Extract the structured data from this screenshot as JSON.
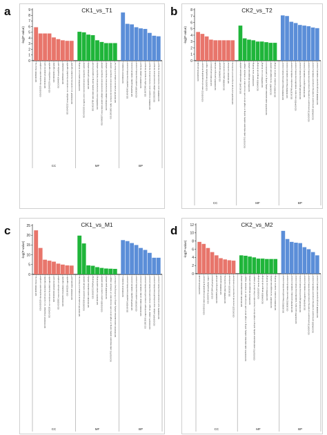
{
  "colors": {
    "CC": "#e8756b",
    "MF": "#1fb53a",
    "BP": "#5b8ed8",
    "axis": "#111111",
    "term_text": "#333333"
  },
  "panels": [
    {
      "letter": "a",
      "title": "CK1_vs_T1",
      "ylabel": "-log(P-value)"
    },
    {
      "letter": "b",
      "title": "CK2_vs_T2",
      "ylabel": "-log(P-value)"
    },
    {
      "letter": "c",
      "title": "CK1_vs_M1",
      "ylabel": "-log(P-value)"
    },
    {
      "letter": "d",
      "title": "CK2_vs_M2",
      "ylabel": "-log(P-value)"
    }
  ],
  "chart_data": [
    {
      "type": "bar",
      "title": "CK1_vs_T1",
      "ylabel": "-log(P-value)",
      "ylim": [
        0,
        9
      ],
      "yticks": [
        "0",
        "1",
        "2",
        "3",
        "4",
        "5",
        "6",
        "7",
        "8",
        "9"
      ],
      "groups": [
        "CC",
        "MF",
        "BP"
      ],
      "series": [
        {
          "name": "CC",
          "values": [
            5.9,
            4.8,
            4.8,
            4.8,
            4.1,
            3.8,
            3.6,
            3.5,
            3.5
          ],
          "terms": [
            "GO:0005840 ribosome",
            "GO:0030529 ribonucleoprotein complex",
            "GO:0044444 cytoplasmic part",
            "GO:0043229 intracellular organelle",
            "GO:0043226 organelle",
            "GO:0044424 intracellular part",
            "GO:0005622 intracellular",
            "GO:0043232 intracellular non-membrane-bounded organelle",
            "GO:0043228 non-membrane-bounded organelle"
          ]
        },
        {
          "name": "MF",
          "values": [
            5.1,
            5.0,
            4.6,
            4.5,
            3.6,
            3.3,
            3.1,
            3.1,
            3.1
          ],
          "terms": [
            "GO:0005509 calcium ion binding",
            "GO:0015103 inorganic anion transmembrane transporter activity",
            "GO:0004553 hydrolase activity",
            "GO:0016798 hydrolase activity, acting on glycosyl bonds",
            "GO:0008509 anion transmembrane transporter activity",
            "GO:0008271 secondary active sulfate transmembrane transporter activity",
            "GO:0015116 sulfate transmembrane transporter activity",
            "GO:1901682 sulfur compound transmembrane transporter activity",
            "GO:0003735 structural constituent of ribosome"
          ]
        },
        {
          "name": "BP",
          "values": [
            8.5,
            6.5,
            6.4,
            5.9,
            5.7,
            5.6,
            4.9,
            4.4,
            4.3
          ],
          "terms": [
            "GO:0006412 translation",
            "GO:0043043 peptide biosynthetic process",
            "GO:0006518 peptide metabolic process",
            "GO:0043604 amide biosynthetic process",
            "GO:0008272 sulfate transport",
            "GO:0072348 sulfur compound transport",
            "GO:0098661 inorganic anion transmembrane transport",
            "GO:1902358 sulfate transmembrane transport",
            "GO:0098656 anion transmembrane transport"
          ]
        }
      ]
    },
    {
      "type": "bar",
      "title": "CK2_vs_T2",
      "ylabel": "-log(P-value)",
      "ylim": [
        0,
        8
      ],
      "yticks": [
        "0",
        "1",
        "2",
        "3",
        "4",
        "5",
        "6",
        "7",
        "8"
      ],
      "groups": [
        "CC",
        "MF",
        "BP"
      ],
      "series": [
        {
          "name": "CC",
          "values": [
            4.5,
            4.2,
            3.8,
            3.3,
            3.2,
            3.2,
            3.2,
            3.2,
            3.2
          ],
          "terms": [
            "GO:0005618 cell wall",
            "GO:0030312 external encapsulating structure",
            "GO:0005576 extracellular region",
            "GO:0071944 cell periphery",
            "GO:0009505 plant-type cell wall",
            "GO:0048046 apoplast",
            "GO:0005886 plasma membrane",
            "GO:0016020 membrane",
            "GO:0031225 anchored component of membrane"
          ]
        },
        {
          "name": "MF",
          "values": [
            5.5,
            3.5,
            3.3,
            3.2,
            3.0,
            3.0,
            2.9,
            2.8,
            2.8
          ],
          "terms": [
            "GO:0016491 oxidoreductase activity",
            "GO:0016701 oxidoreductase activity, acting on single donors with incorporation of molecular oxygen",
            "GO:0051213 dioxygenase activity",
            "GO:0020037 heme binding",
            "GO:0046906 tetrapyrrole binding",
            "GO:0005506 iron ion binding",
            "GO:0016705 oxidoreductase activity, acting on paired donors",
            "GO:0004497 monooxygenase activity",
            "GO:0046914 transition metal ion binding"
          ]
        },
        {
          "name": "BP",
          "values": [
            7.1,
            7.0,
            6.1,
            5.9,
            5.6,
            5.5,
            5.4,
            5.2,
            5.1
          ],
          "terms": [
            "GO:0009813 flavonoid biosynthetic process",
            "GO:0009812 flavonoid metabolic process",
            "GO:0019748 secondary metabolic process",
            "GO:0044550 secondary metabolite biosynthetic process",
            "GO:0046148 pigment biosynthetic process",
            "GO:0042440 pigment metabolic process",
            "GO:0009718 anthocyanin-containing compound biosynthetic process",
            "GO:0046283 anthocyanin-containing compound metabolic process",
            "GO:0009698 phenylpropanoid metabolic process"
          ]
        }
      ]
    },
    {
      "type": "bar",
      "title": "CK1_vs_M1",
      "ylabel": "-log(P-value)",
      "ylim": [
        0,
        25
      ],
      "yticks": [
        "0",
        "5",
        "10",
        "15",
        "20",
        "25"
      ],
      "groups": [
        "CC",
        "MF",
        "BP"
      ],
      "series": [
        {
          "name": "CC",
          "values": [
            22.5,
            13.5,
            7.5,
            7.0,
            6.5,
            5.5,
            5.0,
            4.6,
            4.5
          ],
          "terms": [
            "GO:0005840 ribosome",
            "GO:0030529 ribonucleoprotein complex",
            "GO:0043232 intracellular non-membrane-bounded organelle",
            "GO:0043228 non-membrane-bounded organelle",
            "GO:0044444 cytoplasmic part",
            "GO:0032991 macromolecular complex",
            "GO:0043229 intracellular organelle",
            "GO:0043226 organelle",
            "GO:0044422 organelle part"
          ]
        },
        {
          "name": "MF",
          "values": [
            19.8,
            15.8,
            4.6,
            4.4,
            3.7,
            3.3,
            3.0,
            2.9,
            2.8
          ],
          "terms": [
            "GO:0003735 structural constituent of ribosome",
            "GO:0005198 structural molecule activity",
            "GO:0016491 oxidoreductase activity",
            "GO:0003723 RNA binding",
            "GO:0003676 nucleic acid binding",
            "GO:0016830 carbon-carbon lyase activity",
            "GO:0016829 lyase activity",
            "GO:0016701 oxidoreductase activity, acting on single donors with incorporation of molecular oxygen",
            "GO:0016616 oxidoreductase activity, acting on CH-OH group of donors"
          ]
        },
        {
          "name": "BP",
          "values": [
            17.5,
            17.0,
            16.0,
            15.0,
            13.5,
            12.5,
            11.0,
            8.5,
            8.5
          ],
          "terms": [
            "GO:0006412 translation",
            "GO:0043043 peptide biosynthetic process",
            "GO:0006518 peptide metabolic process",
            "GO:0043604 amide biosynthetic process",
            "GO:0043603 cellular amide metabolic process",
            "GO:1901566 organonitrogen compound biosynthetic process",
            "GO:0044271 cellular nitrogen compound biosynthetic process",
            "GO:0034645 cellular macromolecule biosynthetic process",
            "GO:0009059 macromolecule biosynthetic process"
          ]
        }
      ]
    },
    {
      "type": "bar",
      "title": "CK2_vs_M2",
      "ylabel": "-log(P-value)",
      "ylim": [
        0,
        12
      ],
      "yticks": [
        "0",
        "2",
        "4",
        "6",
        "8",
        "10",
        "12"
      ],
      "groups": [
        "CC",
        "MF",
        "BP"
      ],
      "series": [
        {
          "name": "CC",
          "values": [
            7.8,
            7.3,
            6.3,
            5.3,
            4.5,
            3.8,
            3.5,
            3.3,
            3.2
          ],
          "terms": [
            "GO:0005618 cell wall",
            "GO:0030312 external encapsulating structure",
            "GO:0005576 extracellular region",
            "GO:0071944 cell periphery",
            "GO:0009505 plant-type cell wall",
            "GO:0048046 apoplast",
            "GO:0005886 plasma membrane",
            "GO:0016020 membrane",
            "GO:0031225 anchored component of membrane"
          ]
        },
        {
          "name": "MF",
          "values": [
            4.5,
            4.4,
            4.2,
            4.0,
            3.7,
            3.7,
            3.6,
            3.6,
            3.6
          ],
          "terms": [
            "GO:0016491 oxidoreductase activity",
            "GO:0016701 oxidoreductase activity, acting on single donors with incorporation of molecular oxygen",
            "GO:0051213 dioxygenase activity",
            "GO:0016702 oxidoreductase activity, acting on single donors, incorporation of two atoms of oxygen",
            "GO:0020037 heme binding",
            "GO:0046906 tetrapyrrole binding",
            "GO:0005506 iron ion binding",
            "GO:0004497 monooxygenase activity",
            "GO:0046914 transition metal ion binding"
          ]
        },
        {
          "name": "BP",
          "values": [
            10.5,
            8.5,
            7.8,
            7.6,
            7.5,
            6.5,
            6.0,
            5.3,
            4.5
          ],
          "terms": [
            "GO:0009813 flavonoid biosynthetic process",
            "GO:0009812 flavonoid metabolic process",
            "GO:0019748 secondary metabolic process",
            "GO:0044550 secondary metabolite biosynthetic process",
            "GO:0046148 pigment biosynthetic process",
            "GO:0042440 pigment metabolic process",
            "GO:0009718 anthocyanin-containing compound biosynthetic process",
            "GO:0046283 anthocyanin-containing compound metabolic process",
            "GO:0009698 phenylpropanoid metabolic process"
          ]
        }
      ]
    }
  ]
}
